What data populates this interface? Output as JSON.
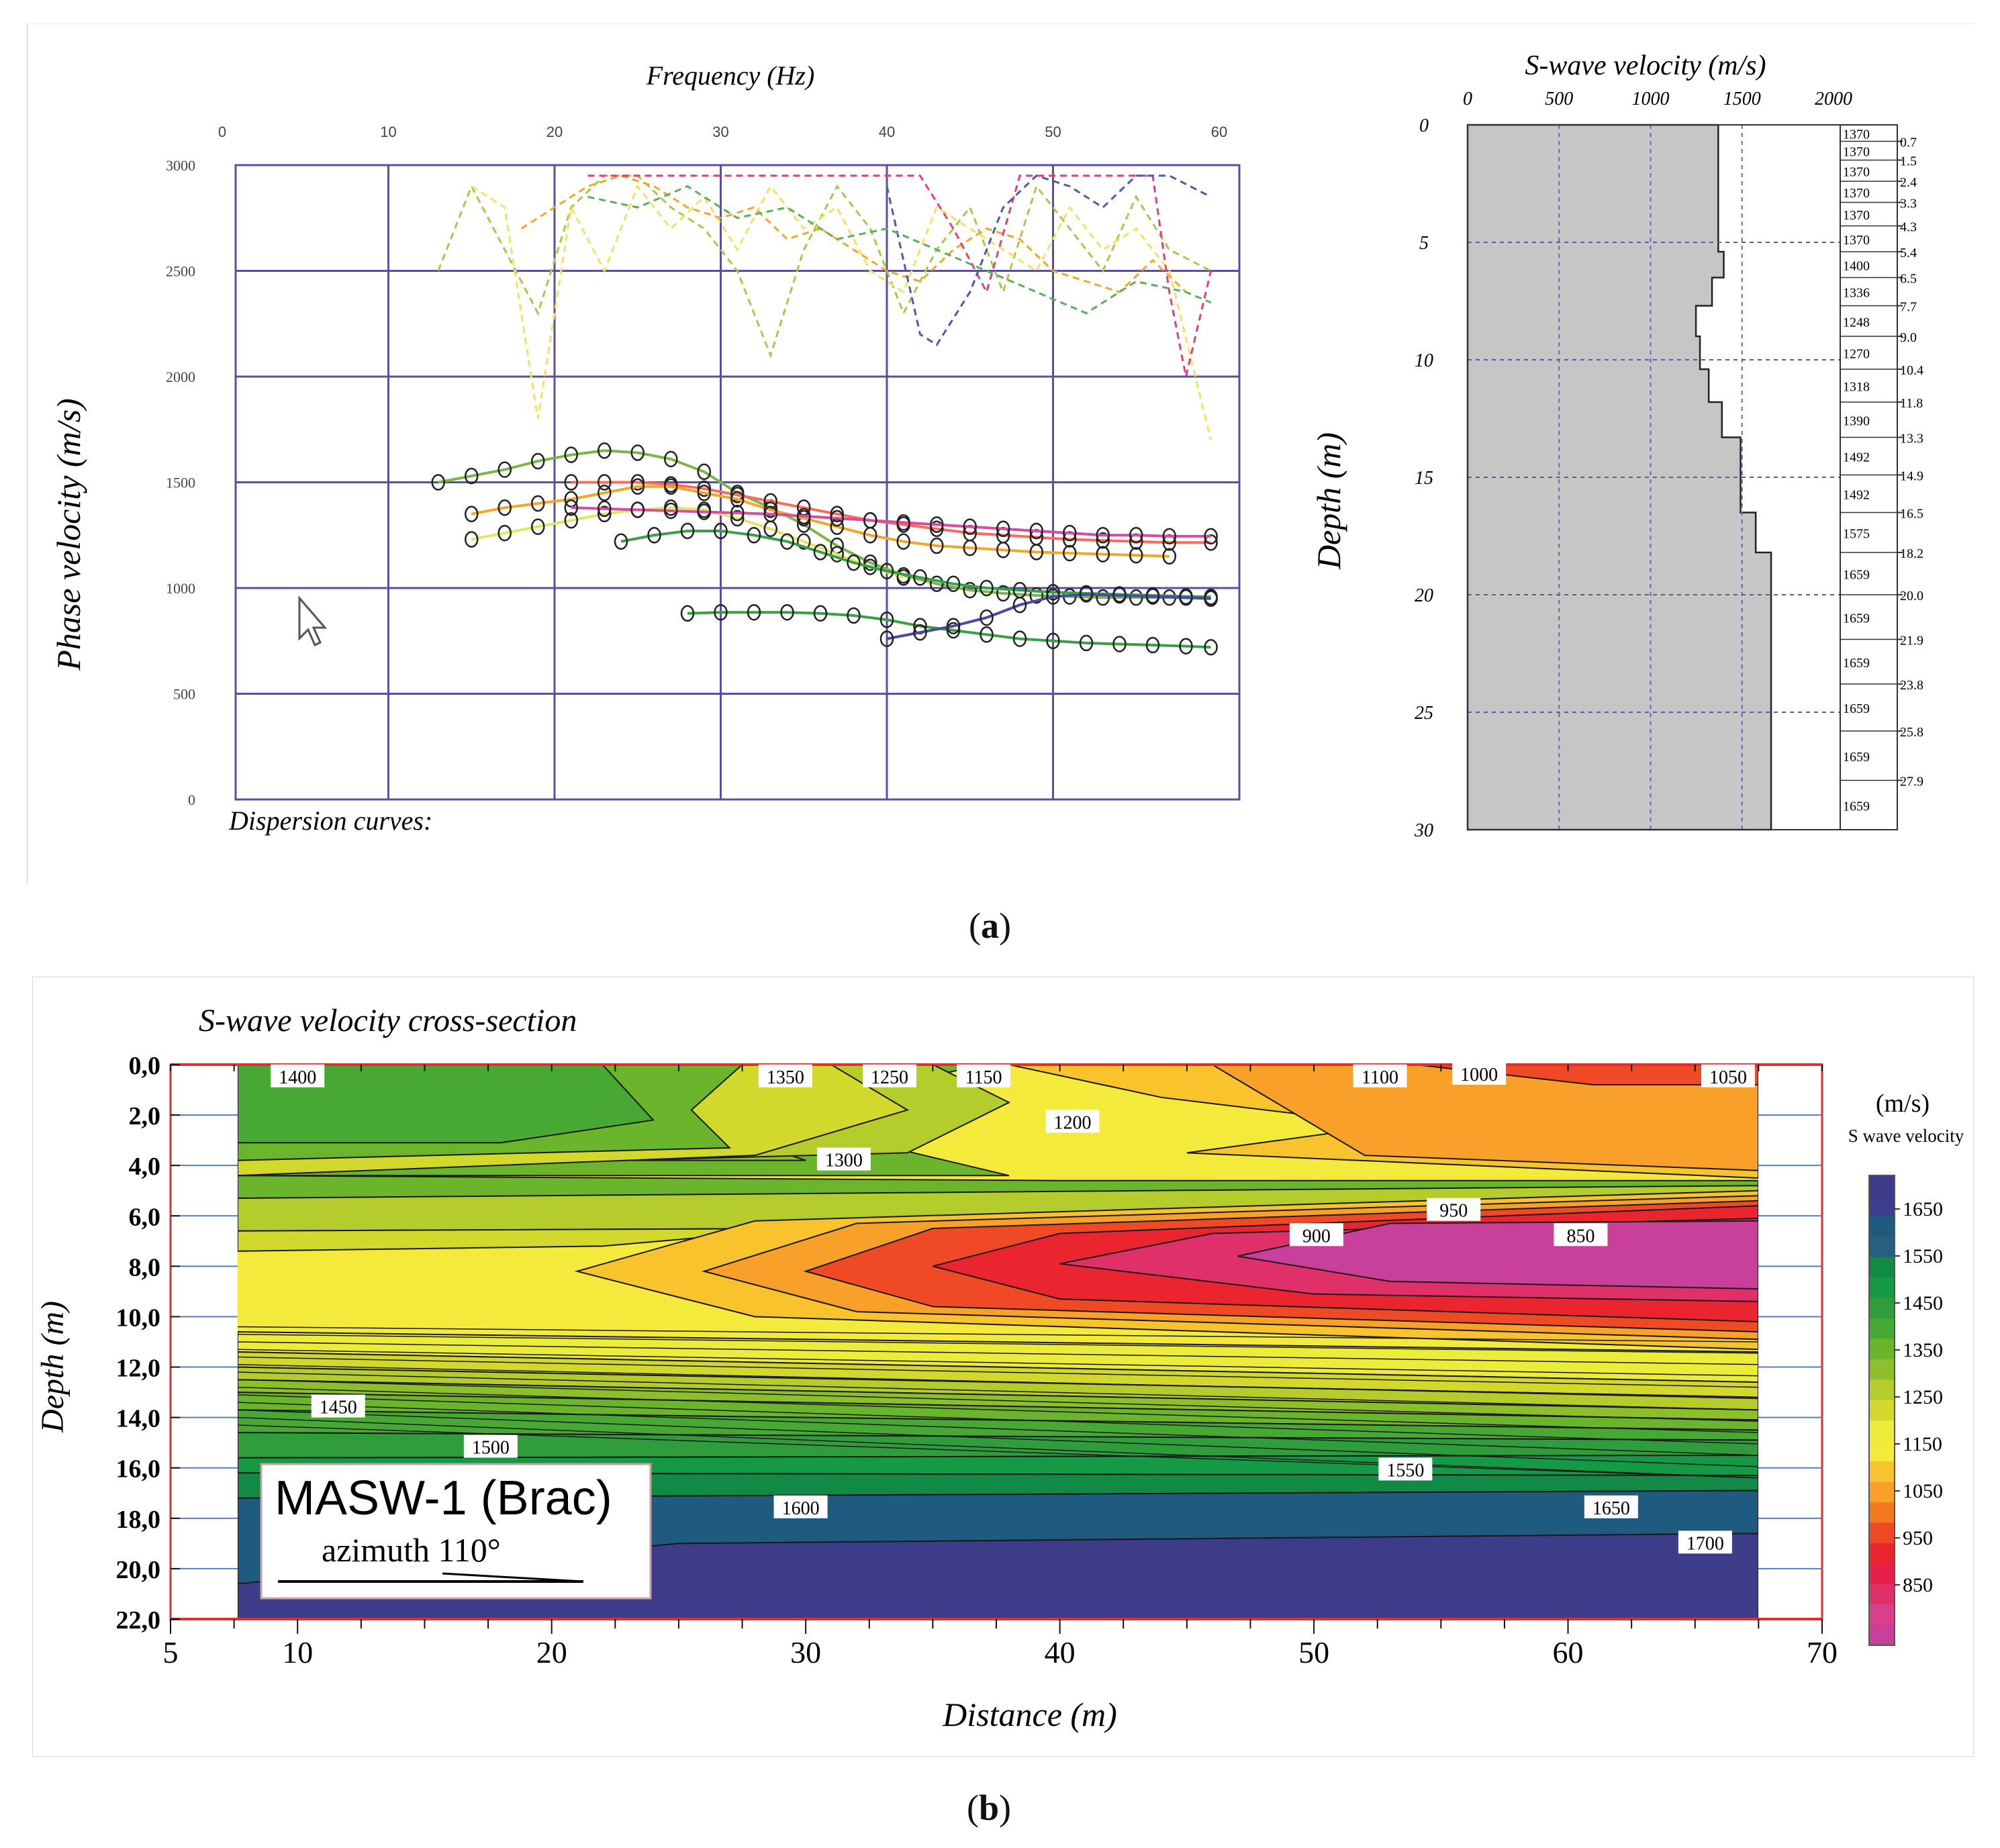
{
  "panel_a_label": "a",
  "panel_b_label": "b",
  "chart_data": [
    {
      "type": "scatter",
      "id": "dispersion",
      "title": "Frequency (Hz)",
      "xlabel": "Frequency (Hz)",
      "ylabel": "Phase velocity (m/s)",
      "footer": "Dispersion curves:",
      "x_ticks": [
        "0",
        "10",
        "20",
        "30",
        "40",
        "50",
        "60"
      ],
      "y_ticks": [
        "0",
        "500",
        "1000",
        "1500",
        "2000",
        "2500",
        "3000"
      ],
      "xlim": [
        0,
        60
      ],
      "ylim": [
        0,
        3000
      ],
      "grid_x": [
        0,
        10,
        20,
        30,
        40,
        50,
        60
      ],
      "grid_y": [
        0,
        500,
        1000,
        1500,
        2000,
        2500,
        3000
      ],
      "series": [
        {
          "color": "#7ab648",
          "style": "solid",
          "x": [
            13,
            15,
            17,
            19,
            21,
            23,
            25,
            27,
            29,
            31,
            33,
            35,
            37,
            39,
            41,
            43,
            45,
            47,
            49,
            51,
            53,
            55,
            57,
            59.5
          ],
          "y": [
            1500,
            1530,
            1560,
            1600,
            1630,
            1650,
            1640,
            1610,
            1550,
            1450,
            1380,
            1300,
            1200,
            1120,
            1060,
            1020,
            990,
            975,
            965,
            960,
            955,
            955,
            955,
            950
          ]
        },
        {
          "color": "#ff6a5c",
          "style": "solid",
          "x": [
            21,
            23,
            25,
            27,
            29,
            31,
            33,
            35,
            37,
            39,
            41,
            43,
            45,
            47,
            49,
            51,
            53,
            55,
            57,
            59.5
          ],
          "y": [
            1500,
            1500,
            1500,
            1490,
            1470,
            1440,
            1410,
            1380,
            1350,
            1320,
            1300,
            1280,
            1260,
            1250,
            1240,
            1230,
            1225,
            1220,
            1215,
            1215
          ]
        },
        {
          "color": "#f5a623",
          "style": "solid",
          "x": [
            15,
            17,
            19,
            21,
            23,
            25,
            27,
            29,
            31,
            33,
            35,
            37,
            39,
            41,
            43,
            45,
            47,
            49,
            51,
            53,
            55,
            57
          ],
          "y": [
            1350,
            1380,
            1400,
            1420,
            1450,
            1480,
            1480,
            1450,
            1420,
            1370,
            1330,
            1290,
            1250,
            1220,
            1200,
            1190,
            1180,
            1170,
            1165,
            1160,
            1155,
            1150
          ]
        },
        {
          "color": "#e0e860",
          "style": "solid",
          "x": [
            15,
            17,
            19,
            21,
            23,
            25,
            27,
            29,
            31,
            33,
            35,
            37,
            39,
            41
          ],
          "y": [
            1230,
            1260,
            1290,
            1320,
            1350,
            1370,
            1380,
            1370,
            1330,
            1280,
            1220,
            1160,
            1100,
            1050
          ]
        },
        {
          "color": "#d94ca0",
          "style": "solid",
          "x": [
            21,
            23,
            25,
            27,
            29,
            31,
            33,
            35,
            37,
            39,
            41,
            43,
            45,
            47,
            49,
            51,
            53,
            55,
            57,
            59.5
          ],
          "y": [
            1380,
            1375,
            1370,
            1365,
            1360,
            1355,
            1350,
            1340,
            1330,
            1320,
            1310,
            1300,
            1290,
            1280,
            1270,
            1260,
            1250,
            1250,
            1245,
            1245
          ]
        },
        {
          "color": "#3aa048",
          "style": "solid",
          "x": [
            24,
            26,
            28,
            30,
            32,
            34,
            36,
            38,
            40,
            42,
            44,
            46,
            48,
            50,
            52,
            54,
            56,
            58,
            59.5
          ],
          "y": [
            1220,
            1250,
            1270,
            1270,
            1250,
            1220,
            1170,
            1120,
            1080,
            1050,
            1020,
            1000,
            990,
            980,
            975,
            970,
            965,
            960,
            958
          ]
        },
        {
          "color": "#3aa048",
          "style": "solid",
          "x": [
            28,
            30,
            32,
            34,
            36,
            38,
            40,
            42,
            44,
            46,
            48,
            50,
            52,
            54,
            56,
            58,
            59.5
          ],
          "y": [
            880,
            885,
            885,
            885,
            880,
            870,
            850,
            820,
            800,
            780,
            760,
            750,
            740,
            735,
            730,
            725,
            720
          ]
        },
        {
          "color": "#4a4aa8",
          "style": "solid",
          "x": [
            40,
            42,
            44,
            46,
            48,
            50,
            52,
            54,
            56,
            58,
            59.5
          ],
          "y": [
            760,
            790,
            820,
            860,
            920,
            960,
            970,
            965,
            960,
            955,
            950
          ]
        },
        {
          "color": "#a8c84a",
          "style": "dashed",
          "x": [
            13,
            15,
            17,
            19,
            21,
            23,
            25,
            27,
            29,
            31,
            33,
            35,
            37,
            39,
            41,
            43,
            45,
            47,
            49,
            51,
            53,
            55,
            57,
            59.5
          ],
          "y": [
            2500,
            2900,
            2600,
            2300,
            2800,
            2950,
            2950,
            2800,
            2700,
            2500,
            2100,
            2600,
            2900,
            2700,
            2300,
            2600,
            2800,
            2400,
            2900,
            2700,
            2500,
            2850,
            2600,
            2500
          ]
        },
        {
          "color": "#f5e060",
          "style": "dashed",
          "x": [
            15,
            17,
            19,
            21,
            23,
            25,
            27,
            29,
            31,
            33,
            35,
            37,
            39,
            41,
            43,
            45,
            47,
            49,
            51,
            53,
            55,
            57,
            59.5
          ],
          "y": [
            2900,
            2800,
            1800,
            2800,
            2500,
            2900,
            2700,
            2850,
            2600,
            2900,
            2700,
            2800,
            2500,
            2400,
            2800,
            2700,
            2600,
            2500,
            2800,
            2600,
            2700,
            2500,
            1700
          ]
        },
        {
          "color": "#f5a623",
          "style": "dashed",
          "x": [
            18,
            20,
            22,
            24,
            26,
            28,
            30,
            32,
            34,
            36,
            38,
            40,
            42,
            44,
            46,
            48,
            50,
            52,
            54,
            56,
            58
          ],
          "y": [
            2700,
            2800,
            2900,
            2950,
            2900,
            2800,
            2750,
            2800,
            2650,
            2700,
            2600,
            2500,
            2450,
            2600,
            2700,
            2650,
            2500,
            2450,
            2400,
            2550,
            2400
          ]
        },
        {
          "color": "#e0407a",
          "style": "dashed",
          "x": [
            22,
            26,
            30,
            34,
            38,
            42,
            44,
            46,
            48,
            50,
            52,
            54,
            56,
            57,
            58,
            59.5
          ],
          "y": [
            2950,
            2950,
            2950,
            2950,
            2950,
            2950,
            2700,
            2400,
            2950,
            2950,
            2950,
            2950,
            2950,
            2400,
            2000,
            2500
          ]
        },
        {
          "color": "#4a5ab0",
          "style": "dashed",
          "x": [
            40,
            42,
            43,
            45,
            47,
            49,
            51,
            53,
            55,
            57,
            59.5
          ],
          "y": [
            2900,
            2200,
            2150,
            2400,
            2800,
            2950,
            2900,
            2800,
            2950,
            2950,
            2850
          ]
        },
        {
          "color": "#5ab05a",
          "style": "dashed",
          "x": [
            22,
            25,
            28,
            31,
            34,
            37,
            40,
            43,
            46,
            49,
            52,
            55,
            58,
            59.5
          ],
          "y": [
            2850,
            2800,
            2900,
            2750,
            2800,
            2650,
            2700,
            2600,
            2500,
            2400,
            2300,
            2450,
            2400,
            2350
          ]
        }
      ]
    },
    {
      "type": "bar",
      "id": "vs-profile",
      "title": "S-wave velocity (m/s)",
      "ylabel": "Depth (m)",
      "x_ticks": [
        "0",
        "500",
        "1000",
        "1500",
        "2000"
      ],
      "depth_ticks": [
        "0",
        "5",
        "10",
        "15",
        "20",
        "25",
        "30"
      ],
      "xlim": [
        0,
        2000
      ],
      "ylim": [
        0,
        30
      ],
      "layers": [
        {
          "top": 0.0,
          "bottom": 0.7,
          "vs": 1370,
          "label": "1370",
          "depth_label": "0.7"
        },
        {
          "top": 0.7,
          "bottom": 1.5,
          "vs": 1370,
          "label": "1370",
          "depth_label": "1.5"
        },
        {
          "top": 1.5,
          "bottom": 2.4,
          "vs": 1370,
          "label": "1370",
          "depth_label": "2.4"
        },
        {
          "top": 2.4,
          "bottom": 3.3,
          "vs": 1370,
          "label": "1370",
          "depth_label": "3.3"
        },
        {
          "top": 3.3,
          "bottom": 4.3,
          "vs": 1370,
          "label": "1370",
          "depth_label": "4.3"
        },
        {
          "top": 4.3,
          "bottom": 5.4,
          "vs": 1370,
          "label": "1370",
          "depth_label": "5.4"
        },
        {
          "top": 5.4,
          "bottom": 6.5,
          "vs": 1400,
          "label": "1400",
          "depth_label": "6.5"
        },
        {
          "top": 6.5,
          "bottom": 7.7,
          "vs": 1336,
          "label": "1336",
          "depth_label": "7.7"
        },
        {
          "top": 7.7,
          "bottom": 9.0,
          "vs": 1248,
          "label": "1248",
          "depth_label": "9.0"
        },
        {
          "top": 9.0,
          "bottom": 10.4,
          "vs": 1270,
          "label": "1270",
          "depth_label": "10.4"
        },
        {
          "top": 10.4,
          "bottom": 11.8,
          "vs": 1318,
          "label": "1318",
          "depth_label": "11.8"
        },
        {
          "top": 11.8,
          "bottom": 13.3,
          "vs": 1390,
          "label": "1390",
          "depth_label": "13.3"
        },
        {
          "top": 13.3,
          "bottom": 14.9,
          "vs": 1492,
          "label": "1492",
          "depth_label": "14.9"
        },
        {
          "top": 14.9,
          "bottom": 16.5,
          "vs": 1492,
          "label": "1492",
          "depth_label": "16.5"
        },
        {
          "top": 16.5,
          "bottom": 18.2,
          "vs": 1575,
          "label": "1575",
          "depth_label": "18.2"
        },
        {
          "top": 18.2,
          "bottom": 20.0,
          "vs": 1659,
          "label": "1659",
          "depth_label": "20.0"
        },
        {
          "top": 20.0,
          "bottom": 21.9,
          "vs": 1659,
          "label": "1659",
          "depth_label": "21.9"
        },
        {
          "top": 21.9,
          "bottom": 23.8,
          "vs": 1659,
          "label": "1659",
          "depth_label": "23.8"
        },
        {
          "top": 23.8,
          "bottom": 25.8,
          "vs": 1659,
          "label": "1659",
          "depth_label": "25.8"
        },
        {
          "top": 25.8,
          "bottom": 27.9,
          "vs": 1659,
          "label": "1659",
          "depth_label": "27.9"
        },
        {
          "top": 27.9,
          "bottom": 30.0,
          "vs": 1659,
          "label": "1659",
          "depth_label": ""
        }
      ]
    },
    {
      "type": "heatmap",
      "id": "cross-section",
      "title": "S-wave velocity cross-section",
      "xlabel": "Distance (m)",
      "ylabel": "Depth (m)",
      "x_ticks": [
        "5",
        "10",
        "20",
        "30",
        "40",
        "50",
        "60",
        "70"
      ],
      "y_ticks": [
        "0,0",
        "2,0",
        "4,0",
        "6,0",
        "8,0",
        "10,0",
        "12,0",
        "14,0",
        "16,0",
        "18,0",
        "20,0",
        "22,0"
      ],
      "xlim": [
        5,
        70
      ],
      "ylim": [
        0,
        22
      ],
      "data_xlim": [
        7.5,
        67.5
      ],
      "colorbar_title": "(m/s)",
      "colorbar_subtitle": "S wave velocity",
      "colorbar_labels": [
        "1650",
        "1550",
        "1450",
        "1350",
        "1250",
        "1150",
        "1050",
        "950",
        "850"
      ],
      "colorbar_colors": [
        "#3c3c88",
        "#3d3d8f",
        "#1f5a7f",
        "#27607e",
        "#128a45",
        "#149a44",
        "#2f9d3b",
        "#48a834",
        "#6ab52c",
        "#8cc02a",
        "#b4cc2c",
        "#d2d82c",
        "#ecec3a",
        "#f3ea3c",
        "#f8c32c",
        "#f8a02a",
        "#f47a22",
        "#ef4a25",
        "#ea2530",
        "#e81f48",
        "#e0306a",
        "#d8408c",
        "#c8409a"
      ],
      "colorbar_levels": [
        1700,
        1650,
        1600,
        1550,
        1500,
        1450,
        1400,
        1350,
        1300,
        1250,
        1200,
        1150,
        1100,
        1050,
        1000,
        950,
        900,
        850
      ],
      "contour_labels": [
        {
          "text": "1400",
          "x": 10.0,
          "y": 0.1
        },
        {
          "text": "1350",
          "x": 29.2,
          "y": 0.1
        },
        {
          "text": "1250",
          "x": 33.3,
          "y": 0.1
        },
        {
          "text": "1150",
          "x": 37.0,
          "y": 0.1
        },
        {
          "text": "1100",
          "x": 52.6,
          "y": 0.1
        },
        {
          "text": "1000",
          "x": 56.5,
          "y": 0.0
        },
        {
          "text": "1050",
          "x": 66.3,
          "y": 0.1
        },
        {
          "text": "1200",
          "x": 40.5,
          "y": 1.9
        },
        {
          "text": "1300",
          "x": 31.5,
          "y": 3.4
        },
        {
          "text": "950",
          "x": 55.5,
          "y": 5.4
        },
        {
          "text": "900",
          "x": 50.1,
          "y": 6.4
        },
        {
          "text": "850",
          "x": 60.5,
          "y": 6.4
        },
        {
          "text": "1450",
          "x": 11.6,
          "y": 13.2
        },
        {
          "text": "1500",
          "x": 17.6,
          "y": 14.8
        },
        {
          "text": "1550",
          "x": 53.6,
          "y": 15.7
        },
        {
          "text": "1600",
          "x": 29.8,
          "y": 17.2
        },
        {
          "text": "1650",
          "x": 61.7,
          "y": 17.2
        },
        {
          "text": "1700",
          "x": 65.4,
          "y": 18.6
        }
      ],
      "info_box": {
        "title": "MASW-1 (Brac)",
        "subtitle": "azimuth 110°"
      }
    }
  ]
}
